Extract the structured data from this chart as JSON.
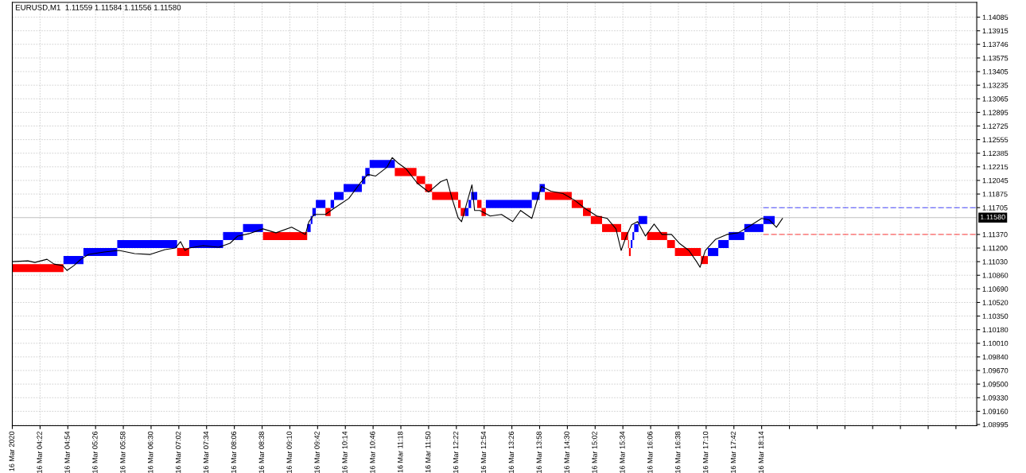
{
  "chart_data": {
    "type": "bar",
    "title": "EURUSD,M1  1.11559 1.11584 1.11556 1.11580",
    "xlim": [
      "2020-03-16T03:50",
      "2020-03-16T22:22"
    ],
    "xticks": [
      {
        "value": "2020-03-16T03:50",
        "label": "16 Mar 2020"
      },
      {
        "value": "2020-03-16T04:22",
        "label": "16 Mar 04:22"
      },
      {
        "value": "2020-03-16T04:54",
        "label": "16 Mar 04:54"
      },
      {
        "value": "2020-03-16T05:26",
        "label": "16 Mar 05:26"
      },
      {
        "value": "2020-03-16T05:58",
        "label": "16 Mar 05:58"
      },
      {
        "value": "2020-03-16T06:30",
        "label": "16 Mar 06:30"
      },
      {
        "value": "2020-03-16T07:02",
        "label": "16 Mar 07:02"
      },
      {
        "value": "2020-03-16T07:34",
        "label": "16 Mar 07:34"
      },
      {
        "value": "2020-03-16T08:06",
        "label": "16 Mar 08:06"
      },
      {
        "value": "2020-03-16T08:38",
        "label": "16 Mar 08:38"
      },
      {
        "value": "2020-03-16T09:10",
        "label": "16 Mar 09:10"
      },
      {
        "value": "2020-03-16T09:42",
        "label": "16 Mar 09:42"
      },
      {
        "value": "2020-03-16T10:14",
        "label": "16 Mar 10:14"
      },
      {
        "value": "2020-03-16T10:46",
        "label": "16 Mar 10:46"
      },
      {
        "value": "2020-03-16T11:18",
        "label": "16 Mar 11:18"
      },
      {
        "value": "2020-03-16T11:50",
        "label": "16 Mar 11:50"
      },
      {
        "value": "2020-03-16T12:22",
        "label": "16 Mar 12:22"
      },
      {
        "value": "2020-03-16T12:54",
        "label": "16 Mar 12:54"
      },
      {
        "value": "2020-03-16T13:26",
        "label": "16 Mar 13:26"
      },
      {
        "value": "2020-03-16T13:58",
        "label": "16 Mar 13:58"
      },
      {
        "value": "2020-03-16T14:30",
        "label": "16 Mar 14:30"
      },
      {
        "value": "2020-03-16T15:02",
        "label": "16 Mar 15:02"
      },
      {
        "value": "2020-03-16T15:34",
        "label": "16 Mar 15:34"
      },
      {
        "value": "2020-03-16T16:06",
        "label": "16 Mar 16:06"
      },
      {
        "value": "2020-03-16T16:38",
        "label": "16 Mar 16:38"
      },
      {
        "value": "2020-03-16T17:10",
        "label": "16 Mar 17:10"
      },
      {
        "value": "2020-03-16T17:42",
        "label": "16 Mar 17:42"
      },
      {
        "value": "2020-03-16T18:14",
        "label": "16 Mar 18:14"
      },
      {
        "value": "2020-03-16T18:46",
        "label": null
      },
      {
        "value": "2020-03-16T19:18",
        "label": null
      },
      {
        "value": "2020-03-16T19:50",
        "label": null
      },
      {
        "value": "2020-03-16T20:22",
        "label": null
      },
      {
        "value": "2020-03-16T20:54",
        "label": null
      },
      {
        "value": "2020-03-16T21:26",
        "label": null
      },
      {
        "value": "2020-03-16T21:58",
        "label": null
      }
    ],
    "ylim": [
      1.0898,
      1.1427
    ],
    "yticks": [
      1.14085,
      1.13915,
      1.13746,
      1.13575,
      1.13405,
      1.13235,
      1.13065,
      1.12895,
      1.12725,
      1.12555,
      1.12385,
      1.12215,
      1.12045,
      1.11875,
      1.11705,
      {
        "value": 1.1137,
        "label": "1.11370"
      },
      {
        "value": 1.112,
        "label": "1.11200"
      },
      {
        "value": 1.1103,
        "label": "1.11030"
      },
      {
        "value": 1.1086,
        "label": "1.10860"
      },
      {
        "value": 1.1069,
        "label": "1.10690"
      },
      {
        "value": 1.1052,
        "label": "1.10520"
      },
      {
        "value": 1.1035,
        "label": "1.10350"
      },
      {
        "value": 1.1018,
        "label": "1.10180"
      },
      {
        "value": 1.1001,
        "label": "1.10010"
      },
      {
        "value": 1.0984,
        "label": "1.09840"
      },
      {
        "value": 1.0967,
        "label": "1.09670"
      },
      {
        "value": 1.095,
        "label": "1.09500"
      },
      {
        "value": 1.0933,
        "label": "1.09330"
      },
      {
        "value": 1.0916,
        "label": "1.09160"
      },
      1.08995
    ],
    "grid": true,
    "ref_lines": [
      {
        "axis": "y",
        "value": 1.1158,
        "label": "1.11580",
        "color": "#c0c0c0"
      }
    ],
    "series": [
      {
        "x": [
          "2020-03-16T04:19:30",
          "2020-03-16T05:00:30",
          "2020-03-16T05:31:30",
          "2020-03-16T06:25:30",
          "2020-03-16T07:07",
          "2020-03-16T07:33:30",
          "2020-03-16T08:04:30",
          "2020-03-16T08:27:30",
          "2020-03-16T09:04:30",
          "2020-03-16T09:32",
          "2020-03-16T09:35",
          "2020-03-16T09:38",
          "2020-03-16T09:45:30",
          "2020-03-16T09:54",
          "2020-03-16T09:59",
          "2020-03-16T10:06:30",
          "2020-03-16T10:22:30",
          "2020-03-16T10:35",
          "2020-03-16T10:39:30",
          "2020-03-16T10:56:30",
          "2020-03-16T11:23:30",
          "2020-03-16T11:41",
          "2020-03-16T11:50",
          "2020-03-16T12:09",
          "2020-03-16T12:25:30",
          "2020-03-16T12:29:30",
          "2020-03-16T12:34",
          "2020-03-16T12:37:30",
          "2020-03-16T12:42:30",
          "2020-03-16T12:48:30",
          "2020-03-16T12:53:30",
          "2020-03-16T13:22:30",
          "2020-03-16T13:53:30",
          "2020-03-16T14:01",
          "2020-03-16T14:19:30",
          "2020-03-16T14:41:30",
          "2020-03-16T14:52:30",
          "2020-03-16T15:03:30",
          "2020-03-16T15:21",
          "2020-03-16T15:36",
          "2020-03-16T15:40:30",
          "2020-03-16T15:42",
          "2020-03-16T15:44",
          "2020-03-16T15:46",
          "2020-03-16T15:49:30",
          "2020-03-16T15:57",
          "2020-03-16T16:13:30",
          "2020-03-16T16:29:30",
          "2020-03-16T16:49",
          "2020-03-16T17:08",
          "2020-03-16T17:18",
          "2020-03-16T17:30",
          "2020-03-16T17:45",
          "2020-03-16T18:05",
          "2020-03-16T18:22:30"
        ],
        "base": [
          1.109,
          1.11,
          1.111,
          1.112,
          1.111,
          1.112,
          1.113,
          1.114,
          1.113,
          1.114,
          1.115,
          1.116,
          1.117,
          1.116,
          1.117,
          1.118,
          1.119,
          1.12,
          1.121,
          1.122,
          1.121,
          1.12,
          1.119,
          1.118,
          1.117,
          1.116,
          1.116,
          1.117,
          1.118,
          1.117,
          1.116,
          1.117,
          1.118,
          1.119,
          1.118,
          1.117,
          1.116,
          1.115,
          1.114,
          1.113,
          1.112,
          1.111,
          1.112,
          1.113,
          1.114,
          1.115,
          1.113,
          1.112,
          1.111,
          1.11,
          1.111,
          1.112,
          1.113,
          1.114,
          1.115
        ],
        "values": [
          0.001,
          0.001,
          0.001,
          0.001,
          0.001,
          0.001,
          0.001,
          0.001,
          0.001,
          0.001,
          0.001,
          0.001,
          0.001,
          0.001,
          0.001,
          0.001,
          0.001,
          0.001,
          0.001,
          0.001,
          0.001,
          0.001,
          0.001,
          0.001,
          0.001,
          0.001,
          0.001,
          0.001,
          0.001,
          0.001,
          0.001,
          0.001,
          0.001,
          0.001,
          0.001,
          0.001,
          0.001,
          0.001,
          0.001,
          0.001,
          0.001,
          0.001,
          0.001,
          0.001,
          0.001,
          0.001,
          0.001,
          0.001,
          0.001,
          0.001,
          0.001,
          0.001,
          0.001,
          0.001,
          0.001
        ],
        "colors": [
          "#ff0000",
          "#0000ff",
          "#0000ff",
          "#0000ff",
          "#ff0000",
          "#0000ff",
          "#0000ff",
          "#0000ff",
          "#ff0000",
          "#0000ff",
          "#0000ff",
          "#0000ff",
          "#0000ff",
          "#ff0000",
          "#0000ff",
          "#0000ff",
          "#0000ff",
          "#0000ff",
          "#0000ff",
          "#0000ff",
          "#ff0000",
          "#ff0000",
          "#ff0000",
          "#ff0000",
          "#ff0000",
          "#ff0000",
          "#0000ff",
          "#0000ff",
          "#0000ff",
          "#ff0000",
          "#ff0000",
          "#0000ff",
          "#0000ff",
          "#0000ff",
          "#ff0000",
          "#ff0000",
          "#ff0000",
          "#ff0000",
          "#ff0000",
          "#ff0000",
          "#ff0000",
          "#ff0000",
          "#0000ff",
          "#0000ff",
          "#0000ff",
          "#0000ff",
          "#ff0000",
          "#ff0000",
          "#ff0000",
          "#ff0000",
          "#0000ff",
          "#0000ff",
          "#0000ff",
          "#0000ff",
          "#0000ff"
        ]
      },
      {
        "type": "line",
        "color": "#000000",
        "x": [
          "2020-03-16T03:50",
          "2020-03-16T04:08",
          "2020-03-16T04:16",
          "2020-03-16T04:30",
          "2020-03-16T04:38",
          "2020-03-16T04:48",
          "2020-03-16T04:53",
          "2020-03-16T05:01",
          "2020-03-16T05:09",
          "2020-03-16T05:18",
          "2020-03-16T05:36",
          "2020-03-16T05:53",
          "2020-03-16T06:11",
          "2020-03-16T06:29",
          "2020-03-16T06:46",
          "2020-03-16T06:58",
          "2020-03-16T07:04",
          "2020-03-16T07:09",
          "2020-03-16T07:14",
          "2020-03-16T07:30",
          "2020-03-16T07:48",
          "2020-03-16T08:01",
          "2020-03-16T08:10",
          "2020-03-16T08:23",
          "2020-03-16T08:39",
          "2020-03-16T08:54",
          "2020-03-16T09:12",
          "2020-03-16T09:28",
          "2020-03-16T09:32",
          "2020-03-16T09:38",
          "2020-03-16T09:51",
          "2020-03-16T10:00",
          "2020-03-16T10:18",
          "2020-03-16T10:31",
          "2020-03-16T10:40",
          "2020-03-16T10:49",
          "2020-03-16T11:02",
          "2020-03-16T11:08",
          "2020-03-16T11:15",
          "2020-03-16T11:24",
          "2020-03-16T11:37",
          "2020-03-16T11:50",
          "2020-03-16T12:04",
          "2020-03-16T12:11",
          "2020-03-16T12:17",
          "2020-03-16T12:24",
          "2020-03-16T12:28",
          "2020-03-16T12:34",
          "2020-03-16T12:40",
          "2020-03-16T12:43",
          "2020-03-16T12:49",
          "2020-03-16T13:01",
          "2020-03-16T13:14",
          "2020-03-16T13:27",
          "2020-03-16T13:36",
          "2020-03-16T13:49",
          "2020-03-16T14:00",
          "2020-03-16T14:11",
          "2020-03-16T14:25",
          "2020-03-16T14:38",
          "2020-03-16T14:51",
          "2020-03-16T15:04",
          "2020-03-16T15:16",
          "2020-03-16T15:26",
          "2020-03-16T15:32",
          "2020-03-16T15:38",
          "2020-03-16T15:44",
          "2020-03-16T15:51",
          "2020-03-16T16:00",
          "2020-03-16T16:10",
          "2020-03-16T16:19",
          "2020-03-16T16:30",
          "2020-03-16T16:39",
          "2020-03-16T16:50",
          "2020-03-16T16:59",
          "2020-03-16T17:03",
          "2020-03-16T17:09",
          "2020-03-16T17:21",
          "2020-03-16T17:34",
          "2020-03-16T17:47",
          "2020-03-16T18:01",
          "2020-03-16T18:14",
          "2020-03-16T18:23",
          "2020-03-16T18:31",
          "2020-03-16T18:38"
        ],
        "values": [
          1.1103,
          1.1104,
          1.1102,
          1.1106,
          1.11,
          1.1098,
          1.1092,
          1.1098,
          1.1106,
          1.1112,
          1.1115,
          1.1117,
          1.1113,
          1.1112,
          1.1118,
          1.112,
          1.1128,
          1.1117,
          1.112,
          1.1123,
          1.1121,
          1.1126,
          1.1135,
          1.1138,
          1.1144,
          1.1139,
          1.1146,
          1.1137,
          1.1153,
          1.1162,
          1.1162,
          1.1169,
          1.1182,
          1.1201,
          1.1212,
          1.121,
          1.1221,
          1.1233,
          1.1226,
          1.1219,
          1.1201,
          1.119,
          1.1203,
          1.1206,
          1.1182,
          1.1158,
          1.1153,
          1.1176,
          1.1199,
          1.1167,
          1.1167,
          1.116,
          1.1162,
          1.1153,
          1.1167,
          1.1157,
          1.1197,
          1.1191,
          1.1188,
          1.118,
          1.1169,
          1.116,
          1.1157,
          1.1144,
          1.1117,
          1.1135,
          1.1149,
          1.1153,
          1.1135,
          1.115,
          1.1137,
          1.1137,
          1.1126,
          1.1117,
          1.1103,
          1.1096,
          1.1117,
          1.1131,
          1.1137,
          1.1139,
          1.1148,
          1.1157,
          1.1155,
          1.1146,
          1.1157
        ]
      },
      {
        "type": "line",
        "color": "#4a4aff",
        "line_style": "dashed",
        "x": [
          "2020-03-16T18:16",
          "2020-03-16T22:22"
        ],
        "values": [
          1.11705,
          1.11705
        ]
      },
      {
        "type": "line",
        "color": "#ff6060",
        "line_style": "dashed",
        "x": [
          "2020-03-16T18:16",
          "2020-03-16T22:22"
        ],
        "values": [
          1.1137,
          1.1137
        ]
      }
    ]
  }
}
